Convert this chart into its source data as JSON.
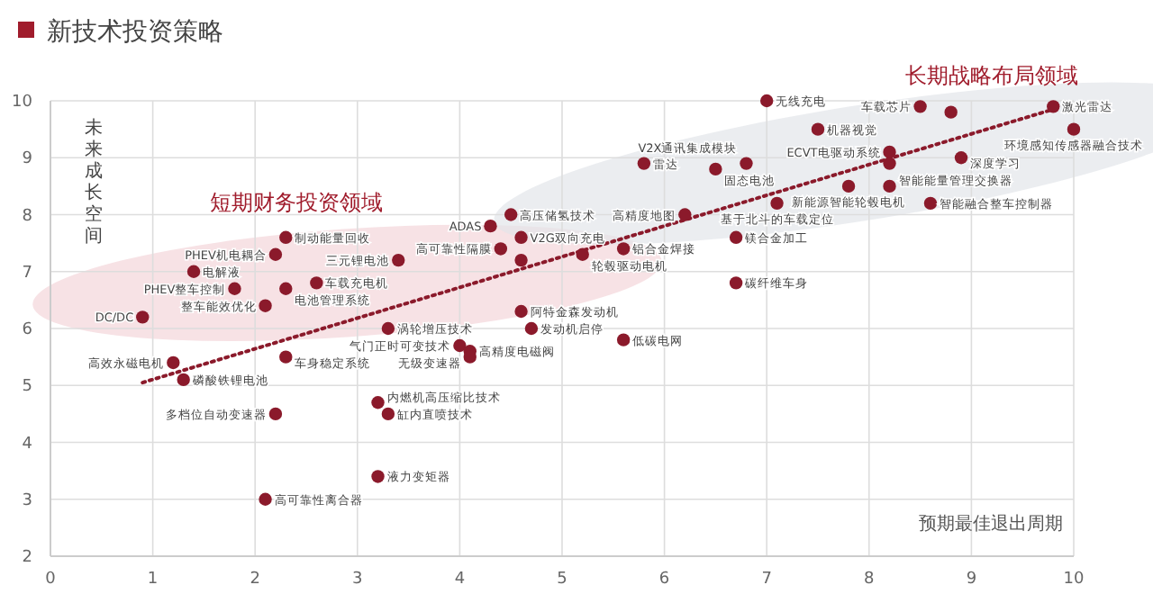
{
  "chart_data": {
    "type": "scatter",
    "title": "新技术投资策略",
    "xlabel": "预期最佳退出周期",
    "ylabel": "未来成长空间",
    "annotations": [
      "短期财务投资领域",
      "长期战略布局领域"
    ],
    "xlim": [
      0,
      10
    ],
    "ylim": [
      2,
      10
    ],
    "xticks": [
      0,
      1,
      2,
      3,
      4,
      5,
      6,
      7,
      8,
      9,
      10
    ],
    "yticks": [
      2,
      3,
      4,
      5,
      6,
      7,
      8,
      9,
      10
    ],
    "grid": true,
    "marker": "circle",
    "series": [
      {
        "color": "#8b1a2b",
        "x": [
          7.0,
          7.5,
          8.5,
          8.8,
          9.8,
          10.0,
          8.9,
          8.2,
          8.2,
          5.8,
          6.5,
          6.8,
          7.8,
          8.2,
          7.1,
          8.6,
          6.2,
          6.7,
          6.7,
          5.6,
          5.2,
          4.5,
          4.3,
          4.6,
          4.4,
          4.6,
          4.6,
          4.7,
          4.0,
          4.1,
          4.1,
          5.6,
          3.4,
          2.3,
          2.2,
          1.4,
          1.8,
          2.3,
          2.6,
          2.1,
          0.9,
          3.3,
          1.2,
          1.3,
          2.3,
          3.2,
          2.2,
          3.3,
          3.2,
          2.1
        ],
        "values": [
          10.0,
          9.5,
          9.9,
          9.8,
          9.9,
          9.5,
          9.0,
          9.1,
          8.9,
          8.9,
          8.8,
          8.9,
          8.5,
          8.5,
          8.2,
          8.2,
          8.0,
          7.6,
          6.8,
          7.4,
          7.3,
          8.0,
          7.8,
          7.6,
          7.4,
          7.2,
          6.3,
          6.0,
          5.7,
          5.6,
          5.5,
          5.8,
          7.2,
          7.6,
          7.3,
          7.0,
          6.7,
          6.7,
          6.8,
          6.4,
          6.2,
          6.0,
          5.4,
          5.1,
          5.5,
          4.7,
          4.5,
          4.5,
          3.4,
          3.0
        ],
        "value_labels": [
          "无线充电",
          "机器视觉",
          "车载芯片",
          null,
          "激光雷达",
          "环境感知传感器融合技术",
          "深度学习",
          "ECVT电驱动系统",
          "智能能量管理交换器",
          "雷达",
          "固态电池",
          "V2X通讯集成模块",
          "新能源智能轮毂电机",
          null,
          "基于北斗的车载定位",
          "智能融合整车控制器",
          "高精度地图",
          "镁合金加工",
          "碳纤维车身",
          "铝合金焊接",
          "轮毂驱动电机",
          "高压储氢技术",
          "ADAS",
          "V2G双向充电",
          "高可靠性隔膜",
          null,
          "阿特金森发动机",
          "发动机启停",
          "气门正时可变技术",
          "高精度电磁阀",
          "无级变速器",
          "低碳电网",
          "三元锂电池",
          "制动能量回收",
          "PHEV机电耦合",
          "电解液",
          "PHEV整车控制",
          "电池管理系统",
          "车载充电机",
          "整车能效优化",
          "DC/DC",
          "涡轮增压技术",
          "高效永磁电机",
          "磷酸铁锂电池",
          "车身稳定系统",
          "内燃机高压缩比技术",
          "多档位自动变速器",
          "缸内直喷技术",
          "液力变矩器",
          "高可靠性离合器"
        ]
      },
      {
        "type": "line",
        "color": "#8b1a2b",
        "line_style": "dotted",
        "marker": "none",
        "x": [
          0.9,
          9.8
        ],
        "values": [
          5.05,
          9.85
        ]
      }
    ]
  }
}
